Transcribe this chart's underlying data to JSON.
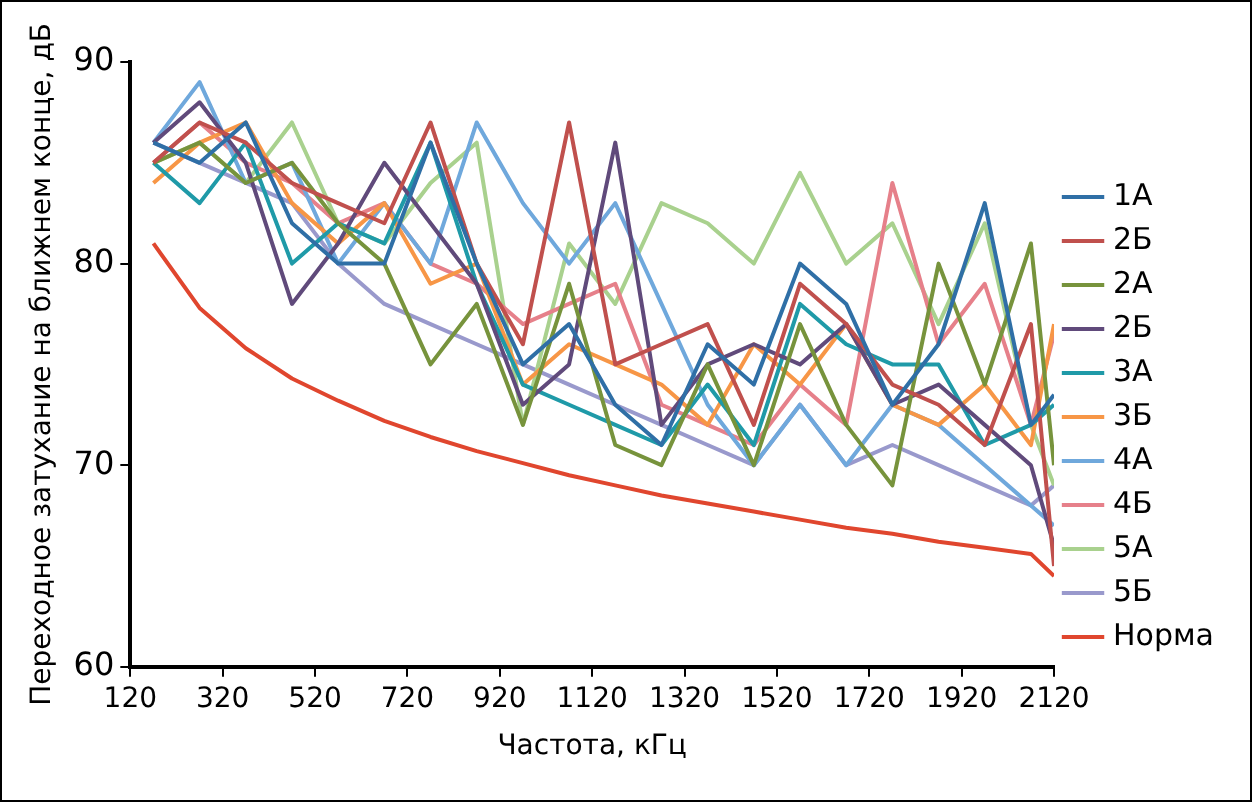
{
  "chart_data": {
    "type": "line",
    "xlabel": "Частота, кГц",
    "ylabel": "Переходное затухание на ближнем конце, дБ",
    "x": [
      170,
      270,
      370,
      470,
      570,
      670,
      770,
      870,
      970,
      1070,
      1170,
      1270,
      1370,
      1470,
      1570,
      1670,
      1770,
      1870,
      1970,
      2070,
      2120
    ],
    "xlim": [
      120,
      2120
    ],
    "xticks": [
      120,
      320,
      520,
      720,
      920,
      1120,
      1320,
      1520,
      1720,
      1920,
      2120
    ],
    "ylim": [
      60,
      90
    ],
    "yticks": [
      60,
      70,
      80,
      90
    ],
    "grid": false,
    "legend": "right",
    "marker": "none",
    "line_style": "solid",
    "series": [
      {
        "name": "1А",
        "color": "#2f6fa6",
        "values": [
          86,
          85,
          87,
          82,
          80,
          80,
          86,
          80,
          75,
          77,
          73,
          71,
          76,
          74,
          80,
          78,
          73,
          76,
          83,
          72,
          73.5
        ]
      },
      {
        "name": "2Б",
        "color": "#c0504d",
        "values": [
          85,
          87,
          86,
          84,
          83,
          82,
          87,
          80,
          76,
          87,
          75,
          76,
          77,
          72,
          79,
          77,
          74,
          73,
          71,
          77,
          65
        ]
      },
      {
        "name": "2А",
        "color": "#77933c",
        "values": [
          85,
          86,
          84,
          85,
          82,
          80,
          75,
          78,
          72,
          79,
          71,
          70,
          75,
          70,
          77,
          72,
          69,
          80,
          74,
          81,
          70
        ]
      },
      {
        "name": "2Б",
        "color": "#604a7b",
        "values": [
          86,
          88,
          85,
          78,
          81,
          85,
          82,
          79,
          73,
          75,
          86,
          72,
          75,
          76,
          75,
          77,
          73,
          74,
          72,
          70,
          66
        ]
      },
      {
        "name": "3А",
        "color": "#1f9aa8",
        "values": [
          85,
          83,
          86,
          80,
          82,
          81,
          86,
          79,
          74,
          73,
          72,
          71,
          74,
          71,
          78,
          76,
          75,
          75,
          71,
          72,
          73
        ]
      },
      {
        "name": "3Б",
        "color": "#f79646",
        "values": [
          84,
          86,
          87,
          83,
          81,
          83,
          79,
          80,
          74,
          76,
          75,
          74,
          72,
          76,
          74,
          77,
          73,
          72,
          74,
          71,
          77
        ]
      },
      {
        "name": "4А",
        "color": "#6fa8dc",
        "values": [
          86,
          89,
          84,
          85,
          80,
          83,
          80,
          87,
          83,
          80,
          83,
          78,
          73,
          70,
          73,
          70,
          73,
          72,
          70,
          68,
          67
        ]
      },
      {
        "name": "4Б",
        "color": "#e6808a",
        "values": [
          85,
          87,
          85,
          84,
          82,
          83,
          80,
          79,
          77,
          78,
          79,
          73,
          72,
          71,
          74,
          72,
          84,
          76,
          79,
          72,
          76.5
        ]
      },
      {
        "name": "5А",
        "color": "#a9d18e",
        "values": [
          85,
          86,
          84,
          87,
          82,
          81,
          84,
          86,
          72,
          81,
          78,
          83,
          82,
          80,
          84.5,
          80,
          82,
          77,
          82,
          72,
          69
        ]
      },
      {
        "name": "5Б",
        "color": "#9999cc",
        "values": [
          86,
          85,
          84,
          83,
          80,
          78,
          77,
          76,
          75,
          74,
          73,
          72,
          71,
          70,
          73,
          70,
          71,
          70,
          69,
          68,
          69
        ]
      },
      {
        "name": "Норма",
        "color": "#e0462e",
        "values": [
          81,
          77.8,
          75.8,
          74.3,
          73.2,
          72.2,
          71.4,
          70.7,
          70.1,
          69.5,
          69,
          68.5,
          68.1,
          67.7,
          67.3,
          66.9,
          66.6,
          66.2,
          65.9,
          65.6,
          64.5
        ]
      }
    ]
  }
}
